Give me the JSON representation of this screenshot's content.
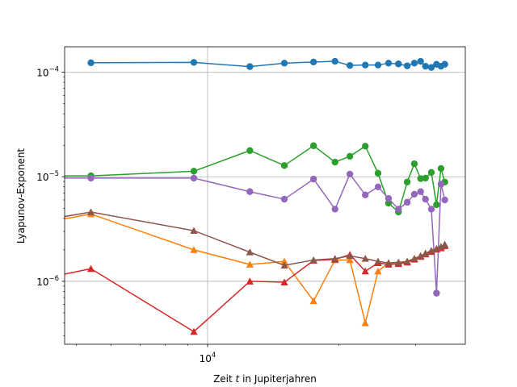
{
  "chart_data": {
    "type": "line",
    "title": "",
    "xlabel": "Zeit t in Jupiterjahren",
    "xlabel_parts": {
      "pre": "Zeit ",
      "var": "t",
      "post": " in Jupiterjahren"
    },
    "ylabel": "Lyapunov-Exponent",
    "xscale": "log",
    "yscale": "log",
    "xlim": [
      4700,
      39000
    ],
    "ylim": [
      2.5e-07,
      0.000175
    ],
    "grid": true,
    "legend": "none",
    "xticks": [
      {
        "value": 10000,
        "base": "10",
        "exp": "4"
      }
    ],
    "yticks": [
      {
        "value": 1e-06,
        "base": "10",
        "exp": "−6"
      },
      {
        "value": 1e-05,
        "base": "10",
        "exp": "−5"
      },
      {
        "value": 0.0001,
        "base": "10",
        "exp": "−4"
      }
    ],
    "series": [
      {
        "color": "#1f77b4",
        "marker": "circle",
        "x": [
          5400,
          9300,
          12500,
          15000,
          17500,
          19600,
          21200,
          23000,
          24600,
          26000,
          27400,
          28700,
          29800,
          30800,
          31600,
          32600,
          33500,
          34300,
          35000
        ],
        "y": [
          0.000123,
          0.000124,
          0.000113,
          0.000122,
          0.000125,
          0.000127,
          0.000116,
          0.000117,
          0.000117,
          0.000122,
          0.00012,
          0.000115,
          0.000122,
          0.000127,
          0.000114,
          0.000111,
          0.000119,
          0.000114,
          0.000119
        ]
      },
      {
        "color": "#2ca02c",
        "marker": "circle",
        "x": [
          4600,
          5400,
          9300,
          12500,
          15000,
          17500,
          19600,
          21200,
          23000,
          24600,
          26000,
          27400,
          28700,
          29800,
          30800,
          31600,
          32600,
          33500,
          34300,
          35000
        ],
        "y": [
          1.02e-05,
          1.02e-05,
          1.13e-05,
          1.78e-05,
          1.28e-05,
          1.98e-05,
          1.38e-05,
          1.57e-05,
          1.96e-05,
          1.08e-05,
          5.6e-06,
          4.6e-06,
          8.9e-06,
          1.33e-05,
          9.6e-06,
          9.7e-06,
          1.1e-05,
          5.4e-06,
          1.2e-05,
          8.9e-06
        ]
      },
      {
        "color": "#9467bd",
        "marker": "circle",
        "x": [
          4600,
          5400,
          9300,
          12500,
          15000,
          17500,
          19600,
          21200,
          23000,
          24600,
          26000,
          27400,
          28700,
          29800,
          30800,
          31600,
          32600,
          33500,
          34300,
          35000
        ],
        "y": [
          9.7e-06,
          9.7e-06,
          9.7e-06,
          7.2e-06,
          6.1e-06,
          9.5e-06,
          4.9e-06,
          1.06e-05,
          6.7e-06,
          8e-06,
          6.2e-06,
          4.9e-06,
          5.7e-06,
          6.8e-06,
          7.2e-06,
          6.1e-06,
          4.9e-06,
          7.7e-07,
          8.5e-06,
          6e-06
        ]
      },
      {
        "color": "#ff7f0e",
        "marker": "triangle",
        "x": [
          4600,
          5400,
          9300,
          12500,
          15000,
          17500,
          19600,
          21200,
          23000,
          24600,
          26000,
          27400,
          28700,
          29800,
          30800,
          31600,
          32600,
          33500,
          34300,
          35000
        ],
        "y": [
          3.9e-06,
          4.4e-06,
          2e-06,
          1.45e-06,
          1.55e-06,
          6.5e-07,
          1.6e-06,
          1.6e-06,
          4e-07,
          1.25e-06,
          1.5e-06,
          1.5e-06,
          1.55e-06,
          1.65e-06,
          1.75e-06,
          1.85e-06,
          1.95e-06,
          2.05e-06,
          2.1e-06,
          2.2e-06
        ]
      },
      {
        "color": "#d62728",
        "marker": "triangle",
        "x": [
          4600,
          5400,
          9300,
          12500,
          15000,
          17500,
          19600,
          21200,
          23000,
          24600,
          26000,
          27400,
          28700,
          29800,
          30800,
          31600,
          32600,
          33500,
          34300,
          35000
        ],
        "y": [
          1.15e-06,
          1.32e-06,
          3.3e-07,
          1e-06,
          9.8e-07,
          1.58e-06,
          1.62e-06,
          1.8e-06,
          1.25e-06,
          1.5e-06,
          1.45e-06,
          1.47e-06,
          1.52e-06,
          1.62e-06,
          1.72e-06,
          1.82e-06,
          1.92e-06,
          2.02e-06,
          2.08e-06,
          2.18e-06
        ]
      },
      {
        "color": "#8c564b",
        "marker": "triangle",
        "x": [
          4600,
          5400,
          9300,
          12500,
          15000,
          17500,
          19600,
          21200,
          23000,
          24600,
          26000,
          27400,
          28700,
          29800,
          30800,
          31600,
          32600,
          33500,
          34300,
          35000
        ],
        "y": [
          4.1e-06,
          4.6e-06,
          3.05e-06,
          1.9e-06,
          1.42e-06,
          1.6e-06,
          1.65e-06,
          1.75e-06,
          1.65e-06,
          1.55e-06,
          1.5e-06,
          1.52e-06,
          1.55e-06,
          1.65e-06,
          1.75e-06,
          1.85e-06,
          1.97e-06,
          2.05e-06,
          2.15e-06,
          2.25e-06
        ]
      }
    ]
  }
}
